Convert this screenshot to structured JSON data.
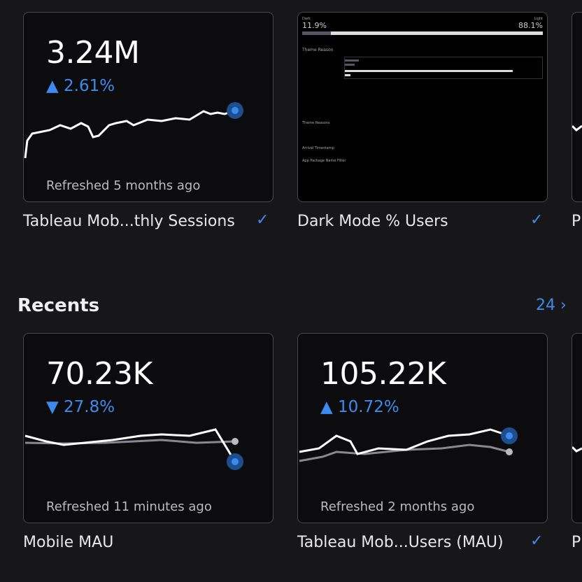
{
  "favorites": [
    {
      "value": "3.24M",
      "delta": "▲ 2.61%",
      "refreshed": "Refreshed 5 months ago",
      "title": "Tableau Mob...thly Sessions",
      "checked": true
    },
    {
      "title": "Dark Mode % Users",
      "checked": true,
      "thumbnail": {
        "dark_label": "Dark",
        "light_label": "Light",
        "dark_value": "11.9%",
        "light_value": "88.1%",
        "section": "Theme Reason",
        "filters_title": "App Package Name Filter",
        "reasons_title": "Theme Reasons",
        "timestamp_title": "Arrival Timestamp"
      }
    },
    {
      "title": "Pl"
    }
  ],
  "recents_header": {
    "title": "Recents",
    "count": "24 ›"
  },
  "recents": [
    {
      "value": "70.23K",
      "delta": "▼ 27.8%",
      "refreshed": "Refreshed 11 minutes ago",
      "title": "Mobile MAU",
      "checked": false
    },
    {
      "value": "105.22K",
      "delta": "▲ 10.72%",
      "refreshed": "Refreshed 2 months ago",
      "title": "Tableau Mob...Users (MAU)",
      "checked": true
    },
    {
      "title": "Pl"
    }
  ],
  "check_icon": "✓",
  "accent": "#3d8bf0"
}
